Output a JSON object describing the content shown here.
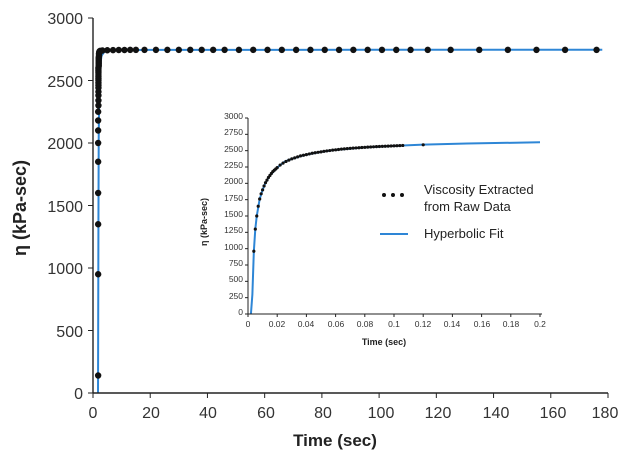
{
  "colors": {
    "fit": "#2e86d6",
    "points": "#111111",
    "axis": "#222222",
    "background": "#ffffff"
  },
  "chart_data": [
    {
      "type": "scatter",
      "title": "",
      "xlabel": "Time (sec)",
      "ylabel": "η (kPa-sec)",
      "xlim": [
        0,
        180
      ],
      "ylim": [
        0,
        3000
      ],
      "xticks": [
        0,
        20,
        40,
        60,
        80,
        100,
        120,
        140,
        160,
        180
      ],
      "yticks": [
        0,
        500,
        1000,
        1500,
        2000,
        2500,
        3000
      ],
      "grid": false,
      "series": [
        {
          "kind": "points",
          "x": [
            1.8,
            1.8,
            1.8,
            1.8,
            1.8,
            1.8,
            1.8,
            1.8,
            1.8,
            1.9,
            1.9,
            1.9,
            1.9,
            1.9,
            1.9,
            1.9,
            1.9,
            1.9,
            1.9,
            1.9,
            1.9,
            1.9,
            1.9,
            1.9,
            1.9,
            2.0,
            2.0,
            2.0,
            2.0,
            2.0,
            2.0,
            2.0,
            2.0,
            2.1,
            2.1,
            2.1,
            2.2,
            2.2,
            2.3,
            2.5,
            3.3,
            5,
            7,
            9,
            11,
            13,
            15,
            18,
            22,
            26,
            30,
            34,
            38,
            42,
            46,
            51,
            56,
            61,
            66,
            71,
            76,
            81,
            86,
            91,
            96,
            101,
            106,
            111,
            117,
            125,
            135,
            145,
            155,
            165,
            176
          ],
          "y": [
            140,
            950,
            1350,
            1600,
            1850,
            2000,
            2100,
            2180,
            2250,
            2300,
            2340,
            2380,
            2410,
            2440,
            2460,
            2480,
            2500,
            2515,
            2530,
            2545,
            2560,
            2575,
            2585,
            2595,
            2605,
            2615,
            2625,
            2635,
            2645,
            2655,
            2665,
            2675,
            2685,
            2695,
            2705,
            2715,
            2722,
            2728,
            2733,
            2737,
            2740,
            2742,
            2743,
            2744,
            2744,
            2745,
            2745,
            2745,
            2745,
            2745,
            2745,
            2745,
            2745,
            2745,
            2745,
            2745,
            2745,
            2745,
            2745,
            2745,
            2745,
            2745,
            2745,
            2745,
            2745,
            2745,
            2745,
            2745,
            2745,
            2745,
            2745,
            2745,
            2745,
            2745,
            2745
          ]
        },
        {
          "kind": "line",
          "x": [
            1.75,
            1.8,
            1.9,
            2.0,
            2.2,
            2.5,
            3,
            4,
            6,
            10,
            20,
            60,
            120,
            178
          ],
          "y": [
            0,
            400,
            1400,
            2050,
            2450,
            2620,
            2700,
            2730,
            2740,
            2743,
            2745,
            2745,
            2746,
            2746
          ]
        }
      ]
    },
    {
      "type": "scatter",
      "title": "",
      "xlabel": "Time (sec)",
      "ylabel": "η (kPa-sec)",
      "xlim": [
        0,
        0.2
      ],
      "ylim": [
        0,
        3000
      ],
      "xticks": [
        "0",
        "0.02",
        "0.04",
        "0.06",
        "0.08",
        "0.1",
        "0.12",
        "0.14",
        "0.16",
        "0.18",
        "0.2"
      ],
      "yticks": [
        "0",
        "250",
        "500",
        "750",
        "1000",
        "1250",
        "1500",
        "1750",
        "2000",
        "2250",
        "2500",
        "2750",
        "3000"
      ],
      "legend_position": "right",
      "legend": [
        {
          "kind": "points",
          "label_lines": [
            "Viscosity Extracted",
            "from Raw Data"
          ]
        },
        {
          "kind": "line",
          "label_lines": [
            "Hyperbolic Fit"
          ]
        }
      ],
      "series": [
        {
          "kind": "points",
          "x": [
            0.004,
            0.005,
            0.006,
            0.007,
            0.008,
            0.009,
            0.01,
            0.011,
            0.012,
            0.013,
            0.014,
            0.015,
            0.016,
            0.017,
            0.018,
            0.019,
            0.02,
            0.022,
            0.024,
            0.026,
            0.028,
            0.03,
            0.032,
            0.034,
            0.036,
            0.038,
            0.04,
            0.042,
            0.044,
            0.046,
            0.048,
            0.05,
            0.052,
            0.054,
            0.056,
            0.058,
            0.06,
            0.062,
            0.064,
            0.066,
            0.068,
            0.07,
            0.072,
            0.074,
            0.076,
            0.078,
            0.08,
            0.082,
            0.084,
            0.086,
            0.088,
            0.09,
            0.092,
            0.094,
            0.096,
            0.098,
            0.1,
            0.102,
            0.104,
            0.106,
            0.12
          ],
          "y": [
            960,
            1300,
            1500,
            1650,
            1760,
            1840,
            1900,
            1960,
            2010,
            2050,
            2090,
            2120,
            2150,
            2180,
            2200,
            2220,
            2240,
            2280,
            2310,
            2335,
            2355,
            2375,
            2390,
            2405,
            2420,
            2430,
            2440,
            2450,
            2460,
            2468,
            2475,
            2482,
            2490,
            2496,
            2502,
            2508,
            2513,
            2518,
            2523,
            2527,
            2531,
            2535,
            2539,
            2542,
            2545,
            2548,
            2551,
            2554,
            2557,
            2559,
            2562,
            2564,
            2566,
            2568,
            2570,
            2572,
            2574,
            2576,
            2578,
            2580,
            2590
          ]
        },
        {
          "kind": "line",
          "x": [
            0.002,
            0.003,
            0.004,
            0.005,
            0.006,
            0.008,
            0.01,
            0.012,
            0.015,
            0.02,
            0.025,
            0.03,
            0.04,
            0.05,
            0.06,
            0.08,
            0.1,
            0.12,
            0.15,
            0.2
          ],
          "y": [
            0,
            300,
            960,
            1300,
            1500,
            1760,
            1900,
            2010,
            2120,
            2240,
            2330,
            2375,
            2440,
            2482,
            2513,
            2551,
            2574,
            2592,
            2610,
            2628
          ]
        }
      ]
    }
  ]
}
